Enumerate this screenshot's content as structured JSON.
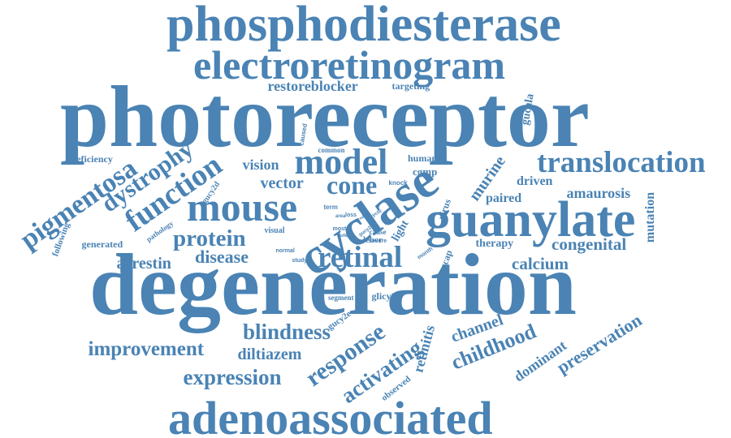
{
  "cloud": {
    "color": "#4a83b4",
    "words": [
      "phosphodiesterase",
      "electroretinogram",
      "photoreceptor",
      "degeneration",
      "adenoassociated",
      "guanylate",
      "cyclase",
      "mouse",
      "model",
      "cone",
      "translocation",
      "retinal",
      "function",
      "dystrophy",
      "pigmentosa",
      "protein",
      "blindness",
      "expression",
      "response",
      "childhood",
      "activating",
      "preservation",
      "improvement",
      "diltiazem",
      "calcium",
      "congenital",
      "amaurosis",
      "arrestin",
      "disease",
      "vector",
      "vision",
      "restoreblocker",
      "targeting",
      "gucy2d",
      "gucy2e",
      "gucy2f",
      "gucala",
      "human",
      "cgmp",
      "murine",
      "driven",
      "paired",
      "channel",
      "dominant",
      "retinitis",
      "observed",
      "therapy",
      "mutation",
      "deficiency",
      "generated",
      "following",
      "pathology",
      "caused",
      "common",
      "term",
      "loss",
      "knock",
      "most",
      "outer",
      "normal",
      "study",
      "segment",
      "leber",
      "light",
      "cause",
      "severe",
      "month",
      "virus",
      "gcap",
      "visual",
      "rod",
      "cyclic",
      "glicy2e",
      "area"
    ]
  }
}
